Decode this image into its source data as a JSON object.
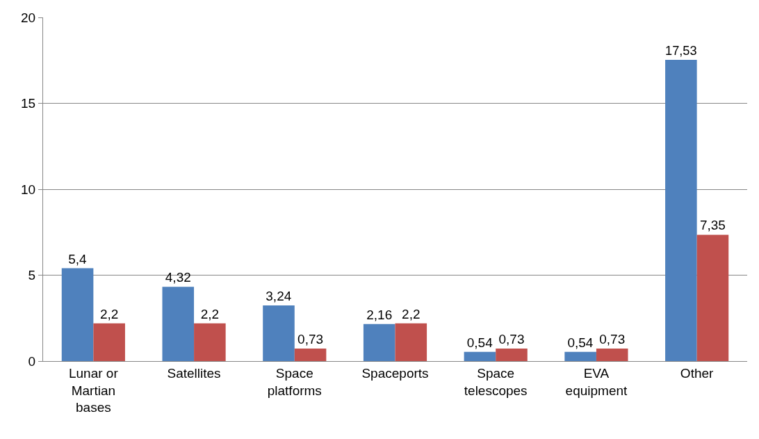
{
  "chart_data": {
    "type": "bar",
    "categories": [
      "Lunar or Martian bases",
      "Satellites",
      "Space platforms",
      "Spaceports",
      "Space telescopes",
      "EVA equipment",
      "Other"
    ],
    "series": [
      {
        "color": "#4f81bd",
        "values": [
          5.4,
          4.32,
          3.24,
          2.16,
          0.54,
          0.54,
          17.53
        ],
        "value_labels": [
          "5,4",
          "4,32",
          "3,24",
          "2,16",
          "0,54",
          "0,54",
          "17,53"
        ]
      },
      {
        "color": "#c0504d",
        "values": [
          2.2,
          2.2,
          0.73,
          2.2,
          0.73,
          0.73,
          7.35
        ],
        "value_labels": [
          "2,2",
          "2,2",
          "0,73",
          "2,2",
          "0,73",
          "0,73",
          "7,35"
        ]
      }
    ],
    "ylim": [
      0,
      20
    ],
    "yticks": [
      0,
      5,
      10,
      15,
      20
    ],
    "grid": "y"
  }
}
